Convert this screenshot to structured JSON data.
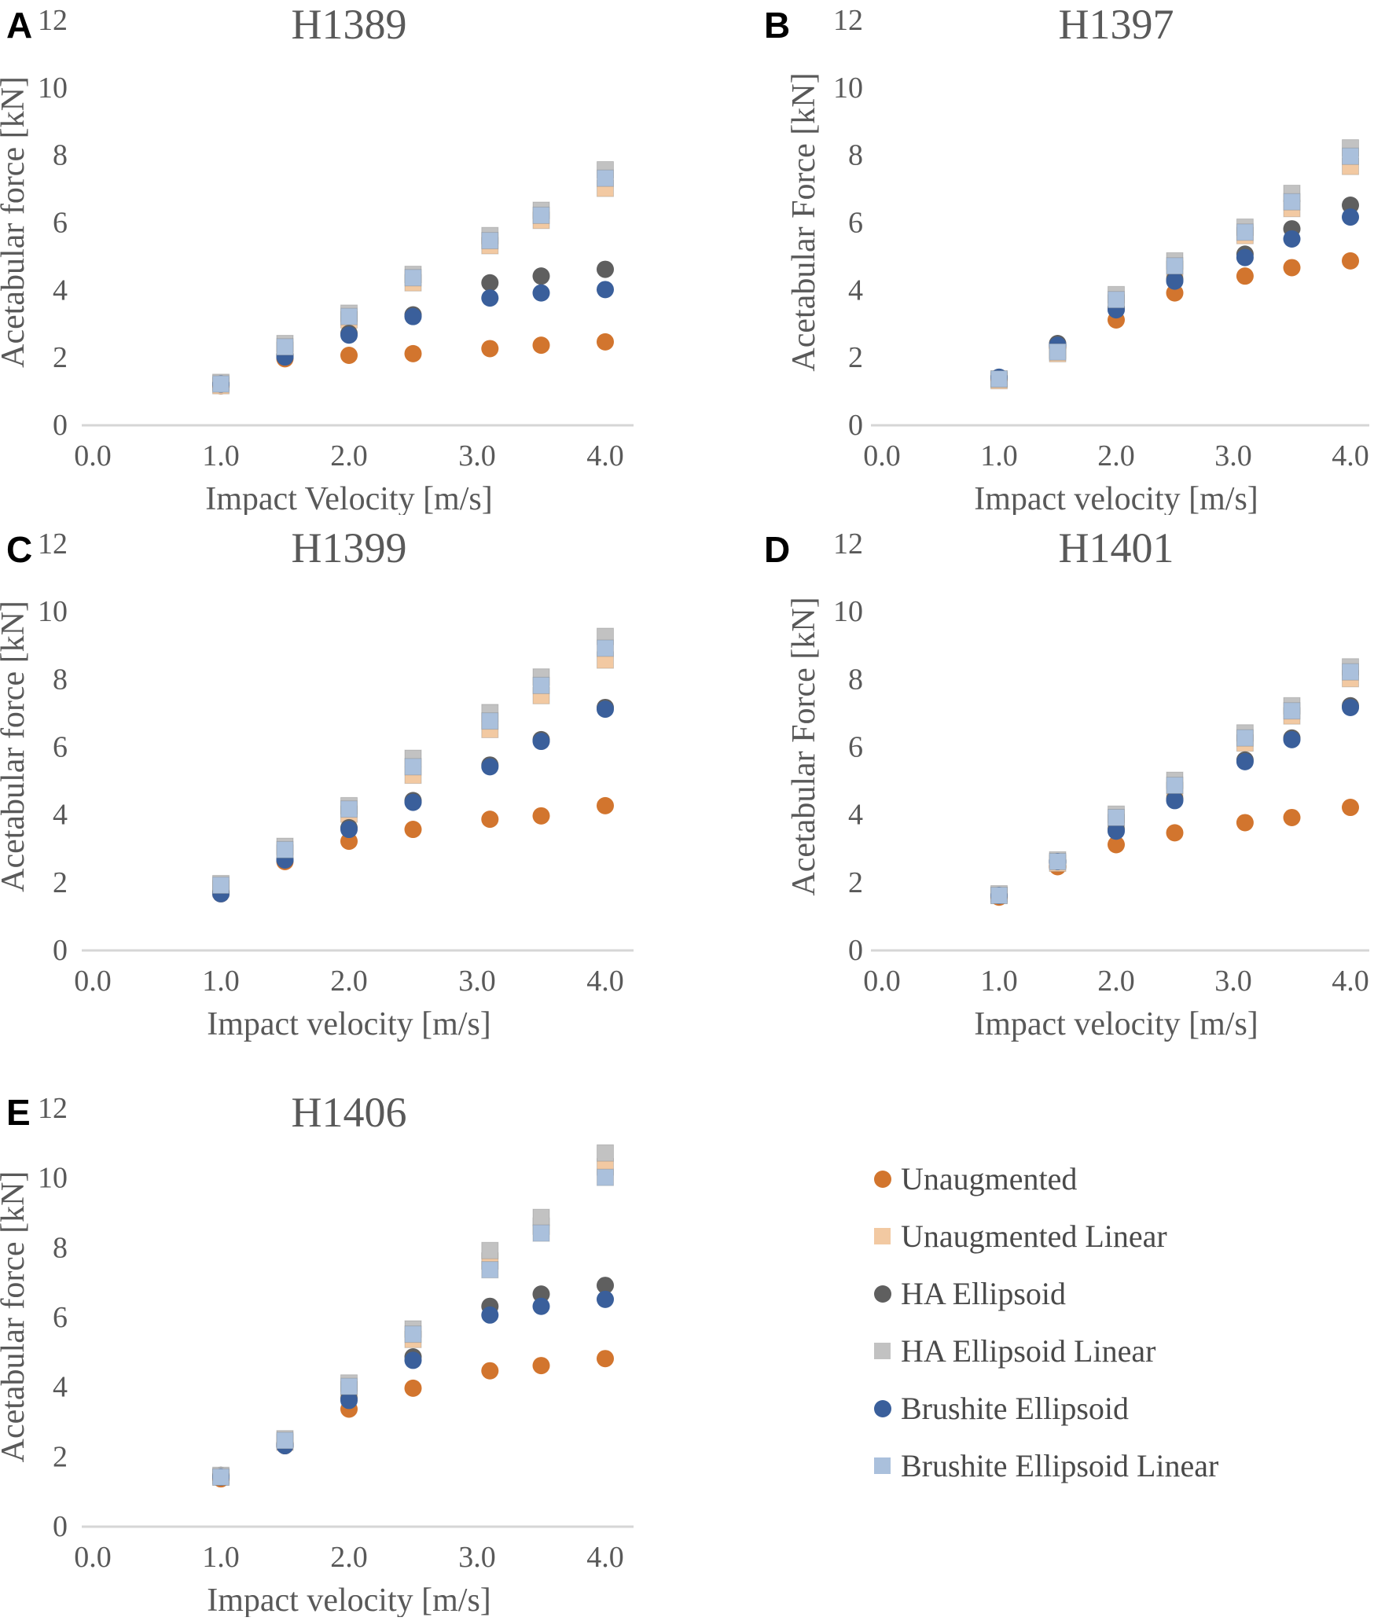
{
  "figure_title": "",
  "axes_defaults": {
    "ylim": [
      0,
      12
    ],
    "yticks": [
      0,
      2,
      4,
      6,
      8,
      10,
      12
    ],
    "xticks": [
      "0.0",
      "1.0",
      "2.0",
      "3.0",
      "4.0"
    ],
    "grid": "off",
    "axis_line_color": "#d6d6d6",
    "text_color": "#595959"
  },
  "series_colors": {
    "Unaugmented": "#D2752E",
    "Unaugmented Linear": "#F2C9A2",
    "HA Ellipsoid": "#5F5F5F",
    "HA Ellipsoid Linear": "#C2C2C2",
    "Brushite Ellipsoid": "#3A5F9B",
    "Brushite Ellipsoid Linear": "#AAC0DC"
  },
  "legend": {
    "position": "bottom-right",
    "items": [
      {
        "label": "Unaugmented",
        "marker": "circle",
        "color": "#D2752E"
      },
      {
        "label": "Unaugmented Linear",
        "marker": "square",
        "color": "#F2C9A2"
      },
      {
        "label": "HA Ellipsoid",
        "marker": "circle",
        "color": "#5F5F5F"
      },
      {
        "label": "HA Ellipsoid Linear",
        "marker": "square",
        "color": "#C2C2C2"
      },
      {
        "label": "Brushite Ellipsoid",
        "marker": "circle",
        "color": "#3A5F9B"
      },
      {
        "label": "Brushite Ellipsoid Linear",
        "marker": "square",
        "color": "#AAC0DC"
      }
    ]
  },
  "chart_data": [
    {
      "type": "scatter",
      "panel": "A",
      "title": "H1389",
      "xlabel": "Impact Velocity [m/s]",
      "ylabel": "Acetabular force  [kN]",
      "ylim": [
        0,
        12
      ],
      "x": [
        1.0,
        1.5,
        2.0,
        2.5,
        3.1,
        3.5,
        4.0
      ],
      "series": [
        {
          "name": "Unaugmented",
          "marker": "circle",
          "color": "#D2752E",
          "values": [
            1.15,
            1.95,
            2.05,
            2.1,
            2.25,
            2.35,
            2.45
          ]
        },
        {
          "name": "Unaugmented Linear",
          "marker": "square",
          "color": "#F2C9A2",
          "values": [
            1.15,
            2.2,
            3.1,
            4.2,
            5.3,
            6.05,
            7.0
          ]
        },
        {
          "name": "HA Ellipsoid",
          "marker": "circle",
          "color": "#5F5F5F",
          "values": [
            1.2,
            2.05,
            2.7,
            3.25,
            4.2,
            4.4,
            4.6
          ]
        },
        {
          "name": "HA Ellipsoid Linear",
          "marker": "square",
          "color": "#C2C2C2",
          "values": [
            1.25,
            2.4,
            3.3,
            4.45,
            5.6,
            6.35,
            7.55
          ]
        },
        {
          "name": "Brushite Ellipsoid",
          "marker": "circle",
          "color": "#3A5F9B",
          "values": [
            1.2,
            2.0,
            2.65,
            3.2,
            3.75,
            3.9,
            4.0
          ]
        },
        {
          "name": "Brushite Ellipsoid Linear",
          "marker": "square",
          "color": "#AAC0DC",
          "values": [
            1.2,
            2.3,
            3.2,
            4.35,
            5.45,
            6.2,
            7.3
          ]
        }
      ]
    },
    {
      "type": "scatter",
      "panel": "B",
      "title": "H1397",
      "xlabel": "Impact velocity [m/s]",
      "ylabel": "Acetabular Force [kN]",
      "ylim": [
        0,
        12
      ],
      "x": [
        1.0,
        1.5,
        2.0,
        2.5,
        3.1,
        3.5,
        4.0
      ],
      "series": [
        {
          "name": "Unaugmented",
          "marker": "circle",
          "color": "#D2752E",
          "values": [
            1.35,
            2.3,
            3.1,
            3.9,
            4.4,
            4.65,
            4.85
          ]
        },
        {
          "name": "Unaugmented Linear",
          "marker": "square",
          "color": "#F2C9A2",
          "values": [
            1.3,
            2.1,
            3.6,
            4.6,
            5.6,
            6.4,
            7.65
          ]
        },
        {
          "name": "HA Ellipsoid",
          "marker": "circle",
          "color": "#5F5F5F",
          "values": [
            1.4,
            2.4,
            3.45,
            4.3,
            5.05,
            5.8,
            6.5
          ]
        },
        {
          "name": "HA Ellipsoid Linear",
          "marker": "square",
          "color": "#C2C2C2",
          "values": [
            1.35,
            2.2,
            3.85,
            4.85,
            5.85,
            6.85,
            8.2
          ]
        },
        {
          "name": "Brushite Ellipsoid",
          "marker": "circle",
          "color": "#3A5F9B",
          "values": [
            1.4,
            2.35,
            3.4,
            4.25,
            4.95,
            5.5,
            6.15
          ]
        },
        {
          "name": "Brushite Ellipsoid Linear",
          "marker": "square",
          "color": "#AAC0DC",
          "values": [
            1.35,
            2.15,
            3.7,
            4.7,
            5.7,
            6.6,
            7.95
          ]
        }
      ]
    },
    {
      "type": "scatter",
      "panel": "C",
      "title": "H1399",
      "xlabel": "Impact velocity [m/s]",
      "ylabel": "Acetabular force [kN]",
      "ylim": [
        0,
        12
      ],
      "x": [
        1.0,
        1.5,
        2.0,
        2.5,
        3.1,
        3.5,
        4.0
      ],
      "series": [
        {
          "name": "Unaugmented",
          "marker": "circle",
          "color": "#D2752E",
          "values": [
            1.65,
            2.6,
            3.2,
            3.55,
            3.85,
            3.95,
            4.25
          ]
        },
        {
          "name": "Unaugmented Linear",
          "marker": "square",
          "color": "#F2C9A2",
          "values": [
            1.8,
            2.85,
            4.0,
            5.15,
            6.5,
            7.5,
            8.55
          ]
        },
        {
          "name": "HA Ellipsoid",
          "marker": "circle",
          "color": "#5F5F5F",
          "values": [
            1.7,
            2.65,
            3.6,
            4.4,
            5.45,
            6.2,
            7.15
          ]
        },
        {
          "name": "HA Ellipsoid Linear",
          "marker": "square",
          "color": "#C2C2C2",
          "values": [
            1.95,
            3.05,
            4.25,
            5.65,
            7.0,
            8.05,
            9.25
          ]
        },
        {
          "name": "Brushite Ellipsoid",
          "marker": "circle",
          "color": "#3A5F9B",
          "values": [
            1.65,
            2.65,
            3.55,
            4.35,
            5.4,
            6.15,
            7.1
          ]
        },
        {
          "name": "Brushite Ellipsoid Linear",
          "marker": "square",
          "color": "#AAC0DC",
          "values": [
            1.9,
            2.95,
            4.15,
            5.4,
            6.75,
            7.8,
            8.9
          ]
        }
      ]
    },
    {
      "type": "scatter",
      "panel": "D",
      "title": "H1401",
      "xlabel": "Impact velocity [m/s]",
      "ylabel": "Acetabular Force [kN]",
      "ylim": [
        0,
        12
      ],
      "x": [
        1.0,
        1.5,
        2.0,
        2.5,
        3.1,
        3.5,
        4.0
      ],
      "series": [
        {
          "name": "Unaugmented",
          "marker": "circle",
          "color": "#D2752E",
          "values": [
            1.55,
            2.45,
            3.1,
            3.45,
            3.75,
            3.9,
            4.2
          ]
        },
        {
          "name": "Unaugmented Linear",
          "marker": "square",
          "color": "#F2C9A2",
          "values": [
            1.6,
            2.55,
            3.75,
            4.7,
            6.1,
            6.9,
            8.0
          ]
        },
        {
          "name": "HA Ellipsoid",
          "marker": "circle",
          "color": "#5F5F5F",
          "values": [
            1.6,
            2.6,
            3.55,
            4.45,
            5.6,
            6.25,
            7.2
          ]
        },
        {
          "name": "HA Ellipsoid Linear",
          "marker": "square",
          "color": "#C2C2C2",
          "values": [
            1.65,
            2.65,
            4.0,
            5.0,
            6.4,
            7.2,
            8.35
          ]
        },
        {
          "name": "Brushite Ellipsoid",
          "marker": "circle",
          "color": "#3A5F9B",
          "values": [
            1.6,
            2.6,
            3.5,
            4.4,
            5.55,
            6.2,
            7.15
          ]
        },
        {
          "name": "Brushite Ellipsoid Linear",
          "marker": "square",
          "color": "#AAC0DC",
          "values": [
            1.6,
            2.6,
            3.9,
            4.85,
            6.25,
            7.05,
            8.2
          ]
        }
      ]
    },
    {
      "type": "scatter",
      "panel": "E",
      "title": "H1406",
      "xlabel": "Impact velocity [m/s]",
      "ylabel": "Acetabular force [kN]",
      "ylim": [
        0,
        12
      ],
      "x": [
        1.0,
        1.5,
        2.0,
        2.5,
        3.1,
        3.5,
        4.0
      ],
      "series": [
        {
          "name": "Unaugmented",
          "marker": "circle",
          "color": "#D2752E",
          "values": [
            1.35,
            2.3,
            3.35,
            3.95,
            4.45,
            4.6,
            4.8
          ]
        },
        {
          "name": "Unaugmented Linear",
          "marker": "square",
          "color": "#F2C9A2",
          "values": [
            1.4,
            2.4,
            3.9,
            5.35,
            7.6,
            8.6,
            10.3
          ]
        },
        {
          "name": "HA Ellipsoid",
          "marker": "circle",
          "color": "#5F5F5F",
          "values": [
            1.45,
            2.35,
            3.65,
            4.85,
            6.3,
            6.65,
            6.9
          ]
        },
        {
          "name": "HA Ellipsoid Linear",
          "marker": "square",
          "color": "#C2C2C2",
          "values": [
            1.45,
            2.5,
            4.1,
            5.65,
            7.9,
            8.85,
            10.7
          ]
        },
        {
          "name": "Brushite Ellipsoid",
          "marker": "circle",
          "color": "#3A5F9B",
          "values": [
            1.4,
            2.3,
            3.6,
            4.75,
            6.05,
            6.3,
            6.5
          ]
        },
        {
          "name": "Brushite Ellipsoid Linear",
          "marker": "square",
          "color": "#AAC0DC",
          "values": [
            1.4,
            2.45,
            4.0,
            5.5,
            7.35,
            8.4,
            10.0
          ]
        }
      ]
    }
  ]
}
